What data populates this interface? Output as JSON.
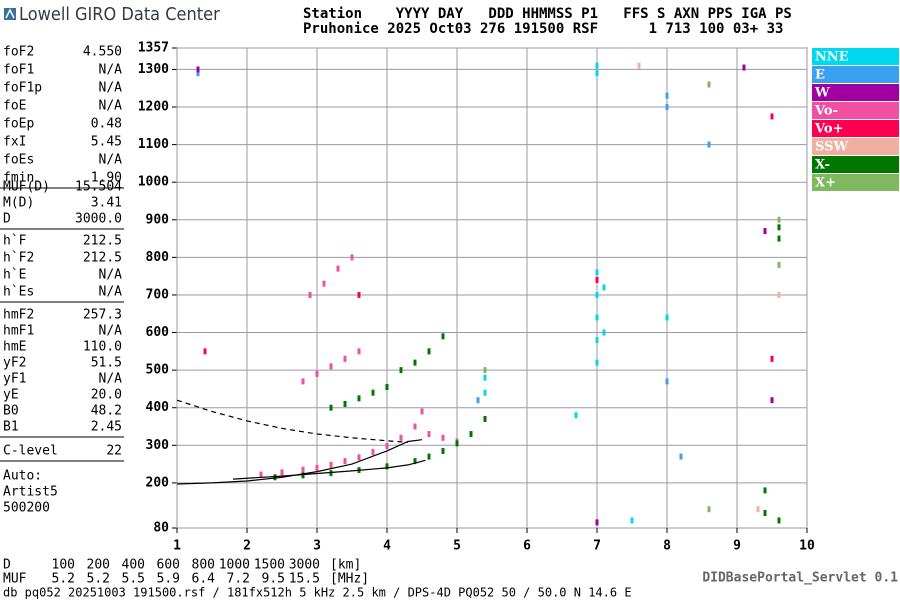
{
  "header": {
    "logo": "Lowell GIRO Data Center",
    "line1": "Station    YYYY DAY   DDD HHMMSS P1   FFS S AXN PPS IGA PS",
    "line2": "Pruhonice 2025 Oct03 276 191500 RSF      1 713 100 03+ 33"
  },
  "parameters": [
    [
      [
        "foF2",
        "4.550"
      ],
      [
        "foF1",
        "N/A"
      ],
      [
        "foF1p",
        "N/A"
      ],
      [
        "foE",
        "N/A"
      ],
      [
        "foEp",
        "0.48"
      ],
      [
        "fxI",
        "5.45"
      ],
      [
        "foEs",
        "N/A"
      ],
      [
        "fmin",
        "1.90"
      ]
    ],
    [
      [
        "MUF(D)",
        "15.504"
      ],
      [
        "M(D)",
        "3.41"
      ],
      [
        "D",
        "3000.0"
      ]
    ],
    [
      [
        "h`F",
        "212.5"
      ],
      [
        "h`F2",
        "212.5"
      ],
      [
        "h`E",
        "N/A"
      ],
      [
        "h`Es",
        "N/A"
      ]
    ],
    [
      [
        "hmF2",
        "257.3"
      ],
      [
        "hmF1",
        "N/A"
      ],
      [
        "hmE",
        "110.0"
      ],
      [
        "yF2",
        "51.5"
      ],
      [
        "yF1",
        "N/A"
      ],
      [
        "yE",
        "20.0"
      ],
      [
        "B0",
        "48.2"
      ],
      [
        "B1",
        "2.45"
      ]
    ],
    [
      [
        "C-level",
        "22"
      ]
    ]
  ],
  "autoscaling": [
    "Auto:",
    "Artist5",
    "500200"
  ],
  "muf_table": [
    [
      "D",
      "100",
      "200",
      "400",
      "600",
      "800",
      "1000",
      "1500",
      "3000",
      "[km]"
    ],
    [
      "MUF",
      "5.2",
      "5.2",
      "5.5",
      "5.9",
      "6.4",
      "7.2",
      "9.5",
      "15.5",
      "[MHz]"
    ]
  ],
  "servlet": "DIDBasePortal_Servlet 0.1",
  "footer": "db pq052 20251003 191500.rsf / 181fx512h 5 kHz 2.5 km / DPS-4D PQ052 50 / 50.0 N 14.6 E",
  "chart_data": {
    "type": "scatter",
    "xlim": [
      1,
      10
    ],
    "ylim": [
      80,
      1357
    ],
    "xticks": [
      1,
      2,
      3,
      4,
      5,
      6,
      7,
      8,
      9,
      10
    ],
    "yticks": [
      80,
      200,
      300,
      400,
      500,
      600,
      700,
      800,
      900,
      1000,
      1100,
      1200,
      1300,
      1357
    ],
    "grid": true,
    "series": [
      {
        "name": "NNE",
        "color": "#00d8f0",
        "x": [
          7.0,
          7.0,
          7.0,
          7.0,
          7.0,
          7.1,
          7.1,
          7.0,
          7.0,
          5.4,
          5.4,
          6.7,
          7.5,
          8.0
        ],
        "values": [
          520,
          580,
          640,
          700,
          760,
          600,
          720,
          1290,
          1310,
          440,
          480,
          380,
          100,
          640
        ]
      },
      {
        "name": "E",
        "color": "#3aa0f0",
        "x": [
          8.0,
          8.0,
          8.6,
          8.0,
          5.3,
          1.3,
          8.2
        ],
        "values": [
          1230,
          470,
          1100,
          1200,
          420,
          1290,
          270
        ]
      },
      {
        "name": "W",
        "color": "#a000a0",
        "x": [
          7.0,
          9.4,
          9.1,
          1.3,
          9.5
        ],
        "values": [
          95,
          870,
          1305,
          1300,
          420
        ]
      },
      {
        "name": "Vo-",
        "color": "#f050a0",
        "x": [
          2.2,
          2.5,
          2.8,
          3.0,
          3.2,
          3.4,
          3.6,
          3.8,
          4.0,
          4.2,
          4.4,
          4.5,
          2.8,
          3.0,
          3.2,
          3.4,
          3.6,
          2.9,
          3.1,
          3.3,
          3.5,
          4.6,
          4.8,
          5.0
        ],
        "values": [
          222,
          228,
          235,
          240,
          248,
          258,
          268,
          282,
          298,
          320,
          350,
          390,
          470,
          490,
          510,
          530,
          550,
          700,
          730,
          770,
          800,
          330,
          320,
          310
        ]
      },
      {
        "name": "Vo+",
        "color": "#ff0050",
        "x": [
          1.4,
          7.0,
          9.5,
          9.5,
          3.6
        ],
        "values": [
          550,
          740,
          1175,
          530,
          700
        ]
      },
      {
        "name": "SSW",
        "color": "#f0b0a0",
        "x": [
          9.3,
          9.6,
          4.6,
          7.6
        ],
        "values": [
          130,
          700,
          550,
          1310
        ]
      },
      {
        "name": "X-",
        "color": "#007800",
        "x": [
          2.4,
          2.8,
          3.2,
          3.6,
          4.0,
          4.4,
          4.6,
          4.8,
          5.0,
          5.2,
          5.4,
          3.2,
          3.4,
          3.6,
          3.8,
          4.0,
          4.2,
          4.4,
          4.6,
          4.8,
          9.4,
          9.4,
          9.6,
          9.6,
          9.6
        ],
        "values": [
          215,
          220,
          226,
          234,
          244,
          258,
          270,
          285,
          305,
          330,
          370,
          400,
          410,
          425,
          440,
          455,
          500,
          520,
          550,
          590,
          120,
          180,
          100,
          850,
          880
        ]
      },
      {
        "name": "X+",
        "color": "#80b860",
        "x": [
          8.6,
          9.6,
          9.6,
          5.4,
          8.6
        ],
        "values": [
          1260,
          900,
          780,
          500,
          130
        ]
      }
    ],
    "lines": [
      {
        "dash": true,
        "x": [
          1,
          1.5,
          2,
          2.5,
          3,
          3.5,
          4,
          4.3
        ],
        "values": [
          420,
          390,
          365,
          345,
          330,
          320,
          312,
          308
        ]
      },
      {
        "dash": false,
        "x": [
          1,
          1.5,
          2,
          2.5,
          3,
          3.5,
          4,
          4.3,
          4.5
        ],
        "values": [
          197,
          200,
          205,
          215,
          230,
          250,
          285,
          310,
          315
        ]
      },
      {
        "dash": false,
        "x": [
          1.8,
          2.5,
          3,
          3.5,
          4,
          4.3,
          4.55
        ],
        "values": [
          210,
          218,
          225,
          232,
          240,
          248,
          260
        ]
      }
    ]
  }
}
